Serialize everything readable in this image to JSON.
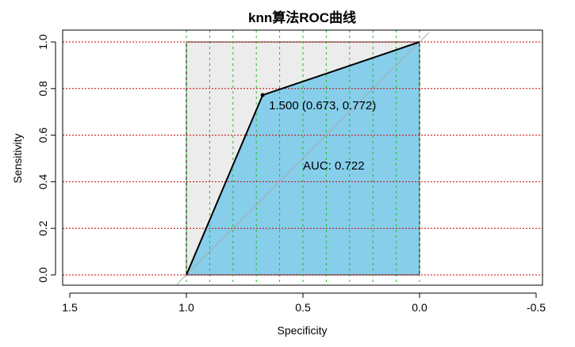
{
  "chart_data": {
    "type": "area",
    "title": "knn算法ROC曲线",
    "xlabel": "Specificity",
    "ylabel": "Sensitivity",
    "x_reversed": true,
    "xlim": [
      1.5,
      -0.5
    ],
    "ylim": [
      0.0,
      1.0
    ],
    "x_ticks": [
      1.5,
      1.0,
      0.5,
      0.0,
      -0.5
    ],
    "x_tick_labels": [
      "1.5",
      "1.0",
      "0.5",
      "0.0",
      "-0.5"
    ],
    "y_ticks": [
      0.0,
      0.2,
      0.4,
      0.6,
      0.8,
      1.0
    ],
    "y_tick_labels": [
      "0.0",
      "0.2",
      "0.4",
      "0.6",
      "0.8",
      "1.0"
    ],
    "grid": {
      "horizontal": [
        0.0,
        0.2,
        0.4,
        0.6,
        0.8,
        1.0
      ],
      "horizontal_color": "#cc0000",
      "vertical": [
        1.0,
        0.9,
        0.8,
        0.7,
        0.6,
        0.5,
        0.4,
        0.3,
        0.2,
        0.1,
        0.0
      ],
      "vertical_color": "#22bb22"
    },
    "roc_curve": {
      "specificity": [
        1.0,
        0.673,
        0.0
      ],
      "sensitivity": [
        0.0,
        0.772,
        1.0
      ],
      "color": "#000000"
    },
    "auc_fill_color": "#87ceeb",
    "max_auc_fill_color": "#ececec",
    "diagonal_color": "#aaaaaa",
    "threshold_point": {
      "specificity": 0.673,
      "sensitivity": 0.772,
      "label": "1.500 (0.673, 0.772)"
    },
    "auc_label": {
      "text": "AUC: 0.722",
      "x": 0.5,
      "y": 0.47
    }
  }
}
